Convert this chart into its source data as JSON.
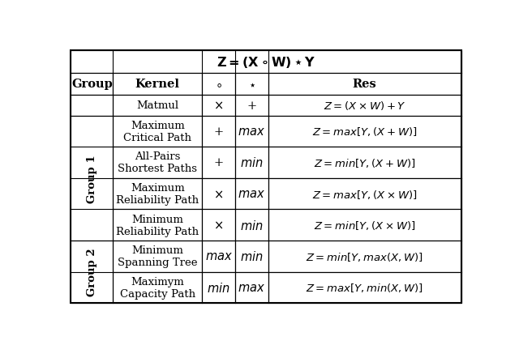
{
  "background_color": "#ffffff",
  "text_color": "#000000",
  "title": "Z = (X \\circ W) \\star Y",
  "col_headers": [
    "Group",
    "Kernel",
    "\\circ",
    "\\star",
    "Res"
  ],
  "col_props": [
    0.108,
    0.228,
    0.085,
    0.085,
    0.494
  ],
  "row_props": [
    0.085,
    0.085,
    0.077,
    0.118,
    0.118,
    0.118,
    0.118,
    0.118,
    0.118
  ],
  "data_rows": [
    {
      "kernel": "Matmul",
      "circ": "\\times",
      "circ_it": false,
      "star": "+",
      "star_it": false,
      "res": "Z = (X \\times W) + Y",
      "res_it": false
    },
    {
      "kernel": "Maximum\nCritical Path",
      "circ": "+",
      "circ_it": false,
      "star": "max",
      "star_it": true,
      "res": "Z = max[Y,(X + W)]",
      "res_it": true
    },
    {
      "kernel": "All-Pairs\nShortest Paths",
      "circ": "+",
      "circ_it": false,
      "star": "min",
      "star_it": true,
      "res": "Z = min[Y,(X + W)]",
      "res_it": true
    },
    {
      "kernel": "Maximum\nReliability Path",
      "circ": "\\times",
      "circ_it": false,
      "star": "max",
      "star_it": true,
      "res": "Z = max[Y,(X \\times W)]",
      "res_it": true
    },
    {
      "kernel": "Minimum\nReliability Path",
      "circ": "\\times",
      "circ_it": false,
      "star": "min",
      "star_it": true,
      "res": "Z = min[Y,(X \\times W)]",
      "res_it": true
    },
    {
      "kernel": "Minimum\nSpanning Tree",
      "circ": "max",
      "circ_it": true,
      "star": "min",
      "star_it": true,
      "res": "Z = min[Y,max(X,W)]",
      "res_it": true
    },
    {
      "kernel": "Maximym\nCapacity Path",
      "circ": "min",
      "circ_it": true,
      "star": "max",
      "star_it": true,
      "res": "Z = max[Y,min(X,W)]",
      "res_it": true
    }
  ],
  "group1_rows": [
    1,
    2,
    3,
    4
  ],
  "group2_rows": [
    5,
    6
  ],
  "header_fontsize": 10.5,
  "cell_fontsize": 9.5,
  "lw_outer": 1.5,
  "lw_inner": 0.8
}
